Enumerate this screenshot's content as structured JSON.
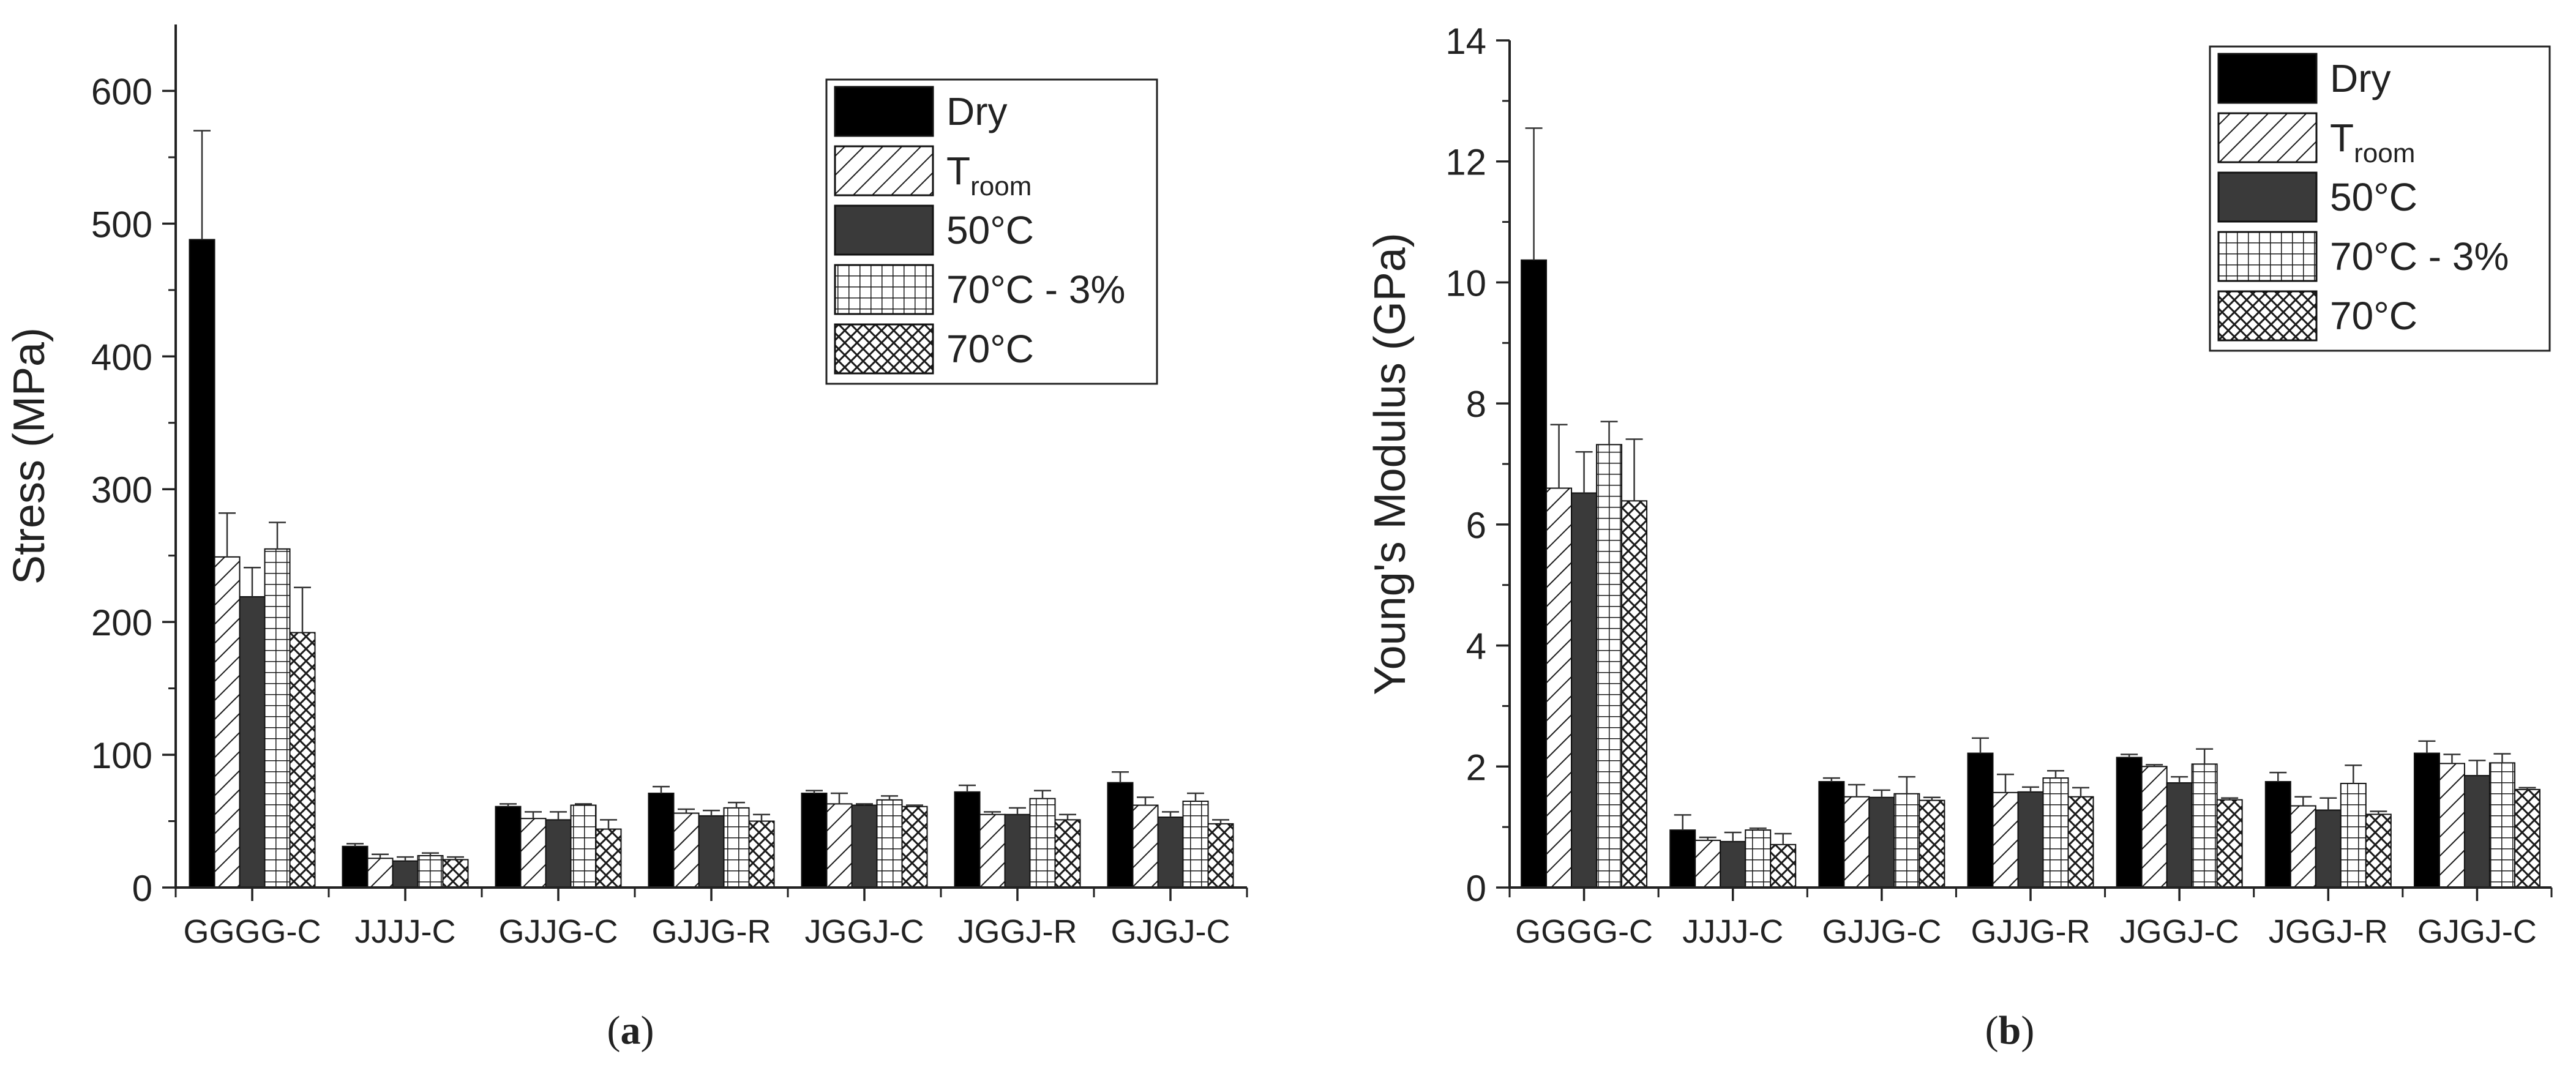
{
  "colors": {
    "dry": "#000000",
    "c50": "#3a3a3a",
    "hatch": "#1a1a1a",
    "background": "#ffffff",
    "axis": "#222222"
  },
  "legend_entries": [
    {
      "key": "dry",
      "label": "Dry",
      "sub": ""
    },
    {
      "key": "troom",
      "label": "T",
      "sub": "room"
    },
    {
      "key": "c50",
      "label": "50°C",
      "sub": ""
    },
    {
      "key": "c70_3",
      "label": "70°C - 3%",
      "sub": ""
    },
    {
      "key": "c70",
      "label": "70°C",
      "sub": ""
    }
  ],
  "chart_data": [
    {
      "type": "bar",
      "panel_label": "a",
      "title": "",
      "xlabel": "",
      "ylabel": "Stress (MPa)",
      "ylim": [
        0,
        650
      ],
      "yticks": [
        0,
        100,
        200,
        300,
        400,
        500,
        600
      ],
      "legend_position": "top-right",
      "categories": [
        "GGGG-C",
        "JJJJ-C",
        "GJJG-C",
        "GJJG-R",
        "JGGJ-C",
        "JGGJ-R",
        "GJGJ-C"
      ],
      "series": [
        {
          "key": "dry",
          "name": "Dry",
          "values": [
            488,
            31,
            61,
            71,
            71,
            72,
            79
          ],
          "errors": [
            82,
            2,
            2,
            5,
            2,
            5,
            8
          ]
        },
        {
          "key": "troom",
          "name": "Troom",
          "values": [
            249,
            22,
            52,
            56,
            63,
            55,
            62
          ],
          "errors": [
            33,
            3,
            5,
            3,
            8,
            2,
            6
          ]
        },
        {
          "key": "c50",
          "name": "50°C",
          "values": [
            219,
            20,
            51,
            54,
            62,
            55,
            53
          ],
          "errors": [
            22,
            3,
            6,
            4,
            1,
            5,
            4
          ]
        },
        {
          "key": "c70_3",
          "name": "70°C - 3%",
          "values": [
            255,
            24,
            62,
            60,
            66,
            67,
            65
          ],
          "errors": [
            20,
            2,
            1,
            4,
            3,
            6,
            6
          ]
        },
        {
          "key": "c70",
          "name": "70°C",
          "values": [
            192,
            21,
            44,
            50,
            61,
            51,
            48
          ],
          "errors": [
            34,
            2,
            7,
            5,
            1,
            4,
            3
          ]
        }
      ]
    },
    {
      "type": "bar",
      "panel_label": "b",
      "title": "",
      "xlabel": "",
      "ylabel": "Young's Modulus (GPa)",
      "ylim": [
        0,
        14
      ],
      "yticks": [
        0,
        2,
        4,
        6,
        8,
        10,
        12,
        14
      ],
      "legend_position": "top-right",
      "categories": [
        "GGGG-C",
        "JJJJ-C",
        "GJJG-C",
        "GJJG-R",
        "JGGJ-C",
        "JGGJ-R",
        "GJGJ-C"
      ],
      "series": [
        {
          "key": "dry",
          "name": "Dry",
          "values": [
            10.37,
            0.95,
            1.75,
            2.22,
            2.15,
            1.75,
            2.22
          ],
          "errors": [
            2.18,
            0.25,
            0.06,
            0.25,
            0.05,
            0.15,
            0.2
          ]
        },
        {
          "key": "troom",
          "name": "Troom",
          "values": [
            6.6,
            0.78,
            1.5,
            1.57,
            2.0,
            1.35,
            2.05
          ],
          "errors": [
            1.05,
            0.05,
            0.2,
            0.3,
            0.03,
            0.15,
            0.15
          ]
        },
        {
          "key": "c50",
          "name": "50°C",
          "values": [
            6.52,
            0.76,
            1.49,
            1.58,
            1.73,
            1.28,
            1.85
          ],
          "errors": [
            0.68,
            0.15,
            0.12,
            0.08,
            0.1,
            0.2,
            0.25
          ]
        },
        {
          "key": "c70_3",
          "name": "70°C - 3%",
          "values": [
            7.32,
            0.95,
            1.55,
            1.81,
            2.04,
            1.72,
            2.06
          ],
          "errors": [
            0.38,
            0.03,
            0.28,
            0.12,
            0.25,
            0.3,
            0.15
          ]
        },
        {
          "key": "c70",
          "name": "70°C",
          "values": [
            6.39,
            0.71,
            1.44,
            1.5,
            1.45,
            1.21,
            1.62
          ],
          "errors": [
            1.02,
            0.18,
            0.05,
            0.15,
            0.03,
            0.05,
            0.03
          ]
        }
      ]
    }
  ]
}
